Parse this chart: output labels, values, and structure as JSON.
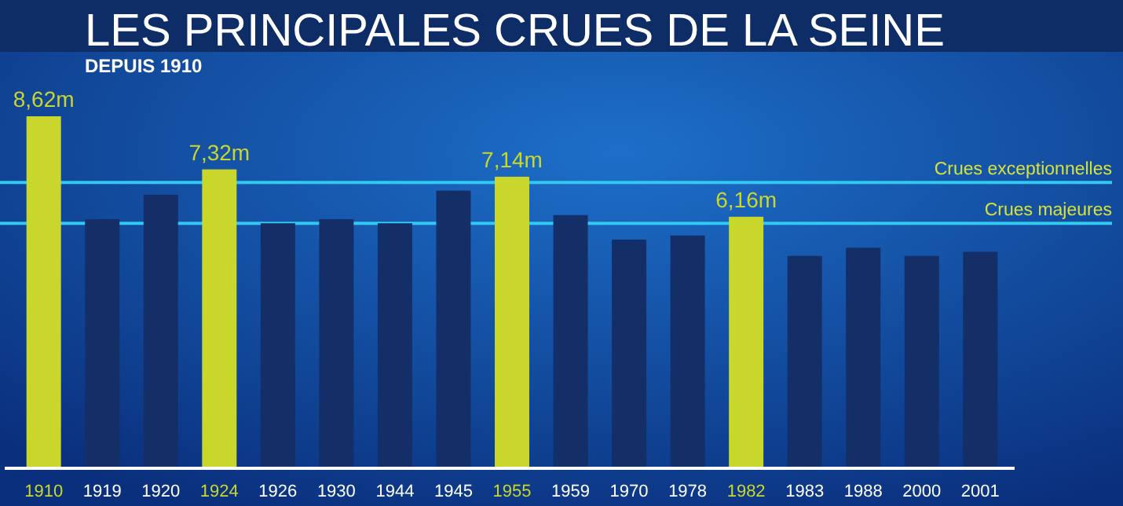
{
  "chart_data": {
    "type": "bar",
    "title": "LES PRINCIPALES CRUES DE LA SEINE",
    "subtitle": "DEPUIS 1910",
    "categories": [
      "1910",
      "1919",
      "1920",
      "1924",
      "1926",
      "1930",
      "1944",
      "1945",
      "1955",
      "1959",
      "1970",
      "1978",
      "1982",
      "1983",
      "1988",
      "2000",
      "2001"
    ],
    "values": [
      8.62,
      6.1,
      6.7,
      7.32,
      6.0,
      6.1,
      6.0,
      6.8,
      7.14,
      6.2,
      5.6,
      5.7,
      6.16,
      5.2,
      5.4,
      5.2,
      5.3
    ],
    "colors": [
      "#c9d62c",
      "#142f68",
      "#142f68",
      "#c9d62c",
      "#142f68",
      "#142f68",
      "#142f68",
      "#142f68",
      "#c9d62c",
      "#142f68",
      "#142f68",
      "#142f68",
      "#c9d62c",
      "#142f68",
      "#142f68",
      "#142f68",
      "#142f68"
    ],
    "value_labels": [
      "8,62m",
      null,
      null,
      "7,32m",
      null,
      null,
      null,
      null,
      "7,14m",
      null,
      null,
      null,
      "6,16m",
      null,
      null,
      null,
      null
    ],
    "ref_lines": [
      {
        "axis": "y",
        "value": 7,
        "label": "Crues exceptionnelles",
        "color": "#33c8f0"
      },
      {
        "axis": "y",
        "value": 6,
        "label": "Crues majeures",
        "color": "#33c8f0"
      }
    ],
    "grid": false
  }
}
